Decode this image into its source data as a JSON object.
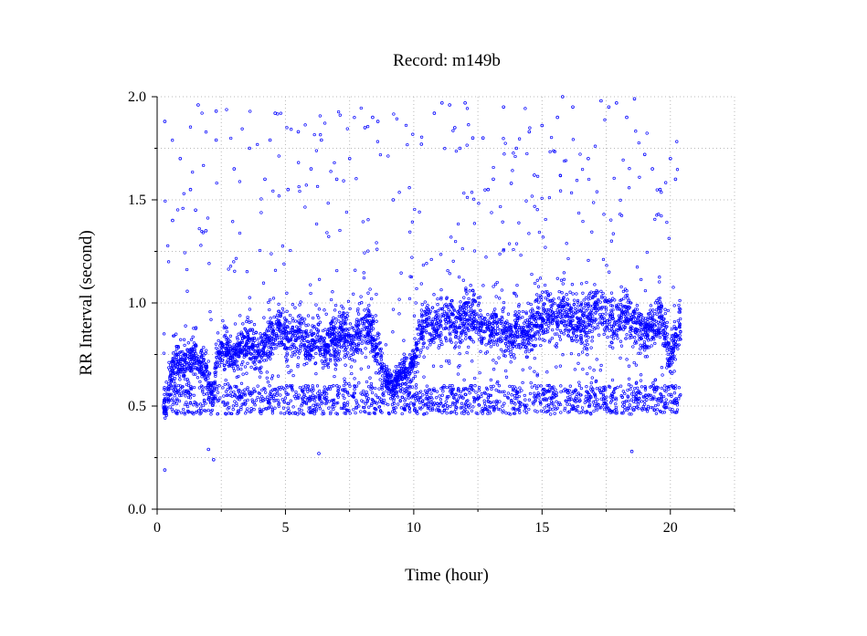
{
  "chart_data": {
    "type": "scatter",
    "title": "Record:  m149b",
    "xlabel": "Time (hour)",
    "ylabel": "RR Interval (second)",
    "xlim": [
      0,
      22.5
    ],
    "ylim": [
      0,
      2.0
    ],
    "x_ticks": [
      0,
      5,
      10,
      15,
      20
    ],
    "x_tick_labels": [
      "0",
      "5",
      "10",
      "15",
      "20"
    ],
    "x_minor_ticks": [
      2.5,
      7.5,
      12.5,
      17.5,
      22.5
    ],
    "y_ticks": [
      0.0,
      0.5,
      1.0,
      1.5,
      2.0
    ],
    "y_tick_labels": [
      "0.0",
      "0.5",
      "1.0",
      "1.5",
      "2.0"
    ],
    "y_minor_ticks": [
      0.25,
      0.75,
      1.25,
      1.75
    ],
    "grid": true,
    "point_color": "#0000ff",
    "series": [
      {
        "name": "",
        "x": [
          0.25,
          0.3,
          0.32,
          0.35,
          0.4,
          0.45,
          0.5,
          0.6,
          0.7,
          0.8,
          0.9,
          1.0,
          1.1,
          1.2,
          1.3,
          1.4,
          1.5,
          1.6,
          1.7,
          1.8,
          1.9,
          2.0,
          2.1,
          2.2,
          2.3,
          2.4,
          2.6,
          2.8,
          3.0,
          3.2,
          3.4,
          3.6,
          3.8,
          4.0,
          4.2,
          4.4,
          4.6,
          4.8,
          5.0,
          5.2,
          5.4,
          5.6,
          5.8,
          6.0,
          6.2,
          6.4,
          6.6,
          6.8,
          7.0,
          7.2,
          7.4,
          7.6,
          7.8,
          8.0,
          8.2,
          8.4,
          8.6,
          8.8,
          9.0,
          9.2,
          9.4,
          9.6,
          9.8,
          10.0,
          10.2,
          10.4,
          10.6,
          10.8,
          11.0,
          11.2,
          11.4,
          11.6,
          11.8,
          12.0,
          12.2,
          12.4,
          12.6,
          12.8,
          13.0,
          13.2,
          13.4,
          13.6,
          13.8,
          14.0,
          14.2,
          14.4,
          14.6,
          14.8,
          15.0,
          15.2,
          15.4,
          15.6,
          15.8,
          16.0,
          16.2,
          16.4,
          16.6,
          16.8,
          17.0,
          17.2,
          17.4,
          17.6,
          17.8,
          18.0,
          18.2,
          18.4,
          18.6,
          18.8,
          19.0,
          19.2,
          19.4,
          19.6,
          19.8,
          20.0,
          20.2,
          20.4
        ],
        "y_median": [
          0.5,
          0.48,
          0.47,
          0.5,
          0.52,
          0.58,
          0.62,
          0.68,
          0.7,
          0.72,
          0.7,
          0.72,
          0.7,
          0.68,
          0.72,
          0.74,
          0.73,
          0.7,
          0.72,
          0.68,
          0.66,
          0.62,
          0.6,
          0.55,
          0.72,
          0.76,
          0.78,
          0.76,
          0.74,
          0.78,
          0.8,
          0.82,
          0.76,
          0.75,
          0.8,
          0.84,
          0.86,
          0.9,
          0.84,
          0.82,
          0.86,
          0.84,
          0.8,
          0.78,
          0.82,
          0.8,
          0.78,
          0.84,
          0.82,
          0.86,
          0.84,
          0.8,
          0.84,
          0.86,
          0.88,
          0.84,
          0.76,
          0.68,
          0.62,
          0.6,
          0.64,
          0.66,
          0.68,
          0.7,
          0.84,
          0.88,
          0.9,
          0.9,
          0.88,
          0.92,
          0.94,
          0.92,
          0.9,
          0.94,
          0.96,
          0.92,
          0.9,
          0.88,
          0.86,
          0.9,
          0.88,
          0.86,
          0.84,
          0.88,
          0.86,
          0.84,
          0.88,
          0.9,
          0.94,
          0.96,
          0.94,
          0.92,
          0.96,
          0.94,
          0.92,
          0.9,
          0.88,
          0.92,
          0.96,
          1.0,
          0.98,
          0.94,
          0.9,
          0.94,
          0.96,
          0.92,
          0.9,
          0.86,
          0.84,
          0.9,
          0.88,
          0.92,
          0.86,
          0.72,
          0.84,
          0.86
        ],
        "y_spread": [
          0.12,
          0.12,
          0.12,
          0.14,
          0.18,
          0.22,
          0.24,
          0.26,
          0.26,
          0.28,
          0.26,
          0.26,
          0.26,
          0.24,
          0.26,
          0.26,
          0.26,
          0.24,
          0.24,
          0.22,
          0.22,
          0.2,
          0.18,
          0.16,
          0.24,
          0.26,
          0.28,
          0.28,
          0.26,
          0.28,
          0.3,
          0.3,
          0.28,
          0.28,
          0.3,
          0.32,
          0.32,
          0.34,
          0.32,
          0.3,
          0.32,
          0.3,
          0.3,
          0.28,
          0.3,
          0.3,
          0.3,
          0.32,
          0.3,
          0.32,
          0.32,
          0.3,
          0.32,
          0.34,
          0.34,
          0.32,
          0.28,
          0.22,
          0.18,
          0.16,
          0.18,
          0.2,
          0.22,
          0.22,
          0.32,
          0.34,
          0.36,
          0.36,
          0.36,
          0.38,
          0.38,
          0.38,
          0.36,
          0.38,
          0.38,
          0.36,
          0.36,
          0.34,
          0.34,
          0.36,
          0.34,
          0.34,
          0.32,
          0.34,
          0.34,
          0.34,
          0.36,
          0.36,
          0.38,
          0.4,
          0.38,
          0.38,
          0.4,
          0.38,
          0.38,
          0.36,
          0.36,
          0.38,
          0.4,
          0.42,
          0.4,
          0.38,
          0.36,
          0.38,
          0.38,
          0.36,
          0.36,
          0.34,
          0.34,
          0.36,
          0.34,
          0.36,
          0.34,
          0.28,
          0.32,
          0.32
        ]
      }
    ],
    "outliers": [
      {
        "x": 0.3,
        "y": 1.88
      },
      {
        "x": 0.3,
        "y": 0.19
      },
      {
        "x": 0.6,
        "y": 1.4
      },
      {
        "x": 0.9,
        "y": 1.7
      },
      {
        "x": 1.3,
        "y": 1.55
      },
      {
        "x": 1.5,
        "y": 1.45
      },
      {
        "x": 1.6,
        "y": 1.96
      },
      {
        "x": 1.9,
        "y": 1.35
      },
      {
        "x": 2.3,
        "y": 1.93
      },
      {
        "x": 2.3,
        "y": 1.79
      },
      {
        "x": 2.2,
        "y": 0.24
      },
      {
        "x": 2.0,
        "y": 0.29
      },
      {
        "x": 3.0,
        "y": 1.65
      },
      {
        "x": 3.6,
        "y": 1.75
      },
      {
        "x": 4.2,
        "y": 1.6
      },
      {
        "x": 4.6,
        "y": 1.92
      },
      {
        "x": 4.4,
        "y": 1.79
      },
      {
        "x": 5.1,
        "y": 1.55
      },
      {
        "x": 5.5,
        "y": 1.83
      },
      {
        "x": 6.0,
        "y": 1.65
      },
      {
        "x": 6.4,
        "y": 1.79
      },
      {
        "x": 6.3,
        "y": 0.27
      },
      {
        "x": 7.0,
        "y": 1.6
      },
      {
        "x": 7.5,
        "y": 1.7
      },
      {
        "x": 8.1,
        "y": 1.85
      },
      {
        "x": 8.4,
        "y": 1.9
      },
      {
        "x": 8.6,
        "y": 1.88
      },
      {
        "x": 9.2,
        "y": 1.5
      },
      {
        "x": 10.3,
        "y": 1.77
      },
      {
        "x": 10.8,
        "y": 1.92
      },
      {
        "x": 11.1,
        "y": 1.97
      },
      {
        "x": 11.4,
        "y": 1.96
      },
      {
        "x": 11.6,
        "y": 1.85
      },
      {
        "x": 12.0,
        "y": 1.97
      },
      {
        "x": 12.3,
        "y": 1.8
      },
      {
        "x": 12.7,
        "y": 1.8
      },
      {
        "x": 13.1,
        "y": 1.6
      },
      {
        "x": 13.5,
        "y": 1.95
      },
      {
        "x": 14.0,
        "y": 1.75
      },
      {
        "x": 14.5,
        "y": 1.83
      },
      {
        "x": 15.0,
        "y": 1.86
      },
      {
        "x": 15.6,
        "y": 1.9
      },
      {
        "x": 15.8,
        "y": 2.0
      },
      {
        "x": 16.2,
        "y": 1.95
      },
      {
        "x": 16.8,
        "y": 1.7
      },
      {
        "x": 17.3,
        "y": 1.98
      },
      {
        "x": 17.6,
        "y": 1.95
      },
      {
        "x": 17.9,
        "y": 1.97
      },
      {
        "x": 18.3,
        "y": 1.9
      },
      {
        "x": 18.6,
        "y": 1.99
      },
      {
        "x": 19.0,
        "y": 1.72
      },
      {
        "x": 19.3,
        "y": 1.65
      },
      {
        "x": 19.6,
        "y": 1.55
      },
      {
        "x": 20.0,
        "y": 1.7
      },
      {
        "x": 20.2,
        "y": 1.6
      },
      {
        "x": 18.5,
        "y": 0.28
      },
      {
        "x": 14.7,
        "y": 1.62
      },
      {
        "x": 13.8,
        "y": 1.58
      },
      {
        "x": 12.9,
        "y": 1.55
      },
      {
        "x": 11.8,
        "y": 1.75
      }
    ]
  }
}
